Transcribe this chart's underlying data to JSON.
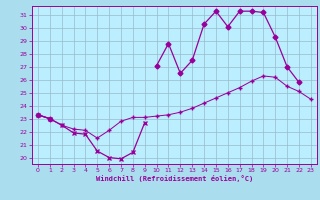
{
  "xlabel": "Windchill (Refroidissement éolien,°C)",
  "x": [
    0,
    1,
    2,
    3,
    4,
    5,
    6,
    7,
    8,
    9,
    10,
    11,
    12,
    13,
    14,
    15,
    16,
    17,
    18,
    19,
    20,
    21,
    22,
    23
  ],
  "line_low": [
    23.3,
    23.0,
    22.5,
    21.9,
    21.8,
    20.5,
    20.0,
    19.9,
    20.4,
    22.7,
    null,
    null,
    null,
    null,
    null,
    null,
    null,
    null,
    null,
    null,
    null,
    null,
    null,
    null
  ],
  "line_mid": [
    23.3,
    23.0,
    22.5,
    22.2,
    22.1,
    21.5,
    22.1,
    22.8,
    23.1,
    23.1,
    23.2,
    23.3,
    23.5,
    23.8,
    24.2,
    24.6,
    25.0,
    25.4,
    25.9,
    26.3,
    26.2,
    25.5,
    25.1,
    24.5
  ],
  "line_high": [
    23.3,
    23.0,
    null,
    null,
    null,
    null,
    null,
    null,
    null,
    null,
    27.1,
    28.8,
    26.5,
    27.5,
    30.3,
    31.3,
    30.1,
    31.3,
    31.3,
    31.2,
    29.3,
    27.0,
    25.8,
    null
  ],
  "line_color": "#990099",
  "bg_color": "#aaddee",
  "plot_bg": "#bbeeff",
  "grid_color": "#99bbcc",
  "ylim": [
    19.5,
    31.7
  ],
  "yticks": [
    20,
    21,
    22,
    23,
    24,
    25,
    26,
    27,
    28,
    29,
    30,
    31
  ],
  "xticks": [
    0,
    1,
    2,
    3,
    4,
    5,
    6,
    7,
    8,
    9,
    10,
    11,
    12,
    13,
    14,
    15,
    16,
    17,
    18,
    19,
    20,
    21,
    22,
    23
  ],
  "marker_size": 2.5,
  "line_width": 0.9
}
